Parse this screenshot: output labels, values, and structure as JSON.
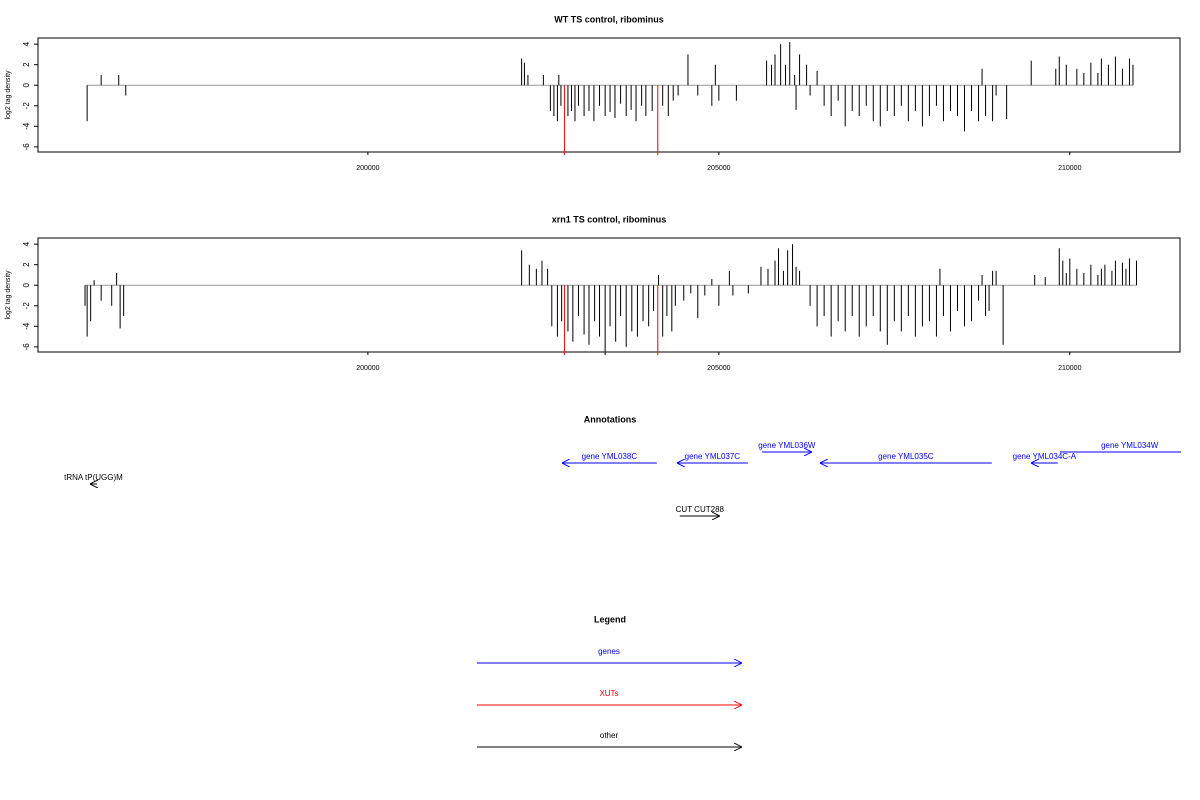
{
  "chart_data": [
    {
      "type": "bar",
      "title": "WT TS control, ribominus",
      "y_label": "log2 tag density",
      "xlim": [
        195300,
        211570
      ],
      "xticks": [
        200000,
        205000,
        210000
      ],
      "ylim": [
        -6.5,
        4.6
      ],
      "yticks": [
        -6,
        -4,
        -2,
        0,
        2,
        4
      ],
      "series": [
        {
          "color": "#000000",
          "x": [
            196000,
            196200,
            196450,
            196550,
            202190,
            202230,
            202280,
            202500,
            202600,
            202650,
            202700,
            202720,
            202750,
            202850,
            202900,
            202950,
            203000,
            203080,
            203150,
            203220,
            203300,
            203380,
            203450,
            203520,
            203600,
            203680,
            203750,
            203820,
            203900,
            203960,
            204050,
            204200,
            204280,
            204350,
            204420,
            204560,
            204700,
            204900,
            204950,
            205000,
            205250,
            205680,
            205750,
            205800,
            205880,
            205950,
            206010,
            206080,
            206100,
            206150,
            206250,
            206300,
            206400,
            206500,
            206600,
            206700,
            206800,
            206900,
            207000,
            207100,
            207200,
            207300,
            207400,
            207500,
            207600,
            207700,
            207800,
            207900,
            208000,
            208100,
            208200,
            208300,
            208400,
            208500,
            208600,
            208700,
            208750,
            208800,
            208900,
            208950,
            209100,
            209450,
            209800,
            209850,
            209950,
            210100,
            210200,
            210300,
            210400,
            210450,
            210550,
            210650,
            210750,
            210850,
            210900
          ],
          "values": [
            -3.5,
            1.0,
            1.0,
            -1.0,
            2.6,
            2.2,
            1.0,
            1.0,
            -2.5,
            -3.0,
            -3.5,
            1.0,
            -2.0,
            -3.0,
            -2.5,
            -3.5,
            -2.0,
            -3.0,
            -2.5,
            -3.5,
            -2.0,
            -3.0,
            -2.6,
            -3.2,
            -1.8,
            -3.0,
            -2.4,
            -3.5,
            -2.0,
            -3.0,
            -2.5,
            -2.0,
            -3.0,
            -1.5,
            -1.0,
            3.0,
            -1.0,
            -2.0,
            2.0,
            -1.5,
            -1.5,
            2.4,
            2.0,
            3.0,
            4.0,
            2.0,
            4.2,
            1.0,
            -2.4,
            3.0,
            2.0,
            -1.0,
            1.4,
            -2.0,
            -3.0,
            -1.5,
            -4.0,
            -2.5,
            -3.0,
            -2.0,
            -3.5,
            -4.0,
            -2.5,
            -3.0,
            -2.0,
            -3.5,
            -2.5,
            -4.0,
            -3.0,
            -2.0,
            -3.5,
            -2.5,
            -3.0,
            -4.5,
            -2.5,
            -3.5,
            1.6,
            -3.0,
            -3.5,
            -1.0,
            -3.3,
            2.4,
            1.6,
            2.8,
            2.0,
            1.6,
            1.2,
            2.2,
            1.2,
            2.6,
            2.0,
            2.8,
            1.6,
            2.6,
            2.0
          ]
        },
        {
          "color": "#ff0000",
          "x": [
            202800,
            204130
          ],
          "values": [
            -6.8,
            -6.8
          ]
        }
      ]
    },
    {
      "type": "bar",
      "title": "xrn1 TS control, ribominus",
      "y_label": "log2 tag density",
      "xlim": [
        195300,
        211570
      ],
      "xticks": [
        200000,
        205000,
        210000
      ],
      "ylim": [
        -6.5,
        4.6
      ],
      "yticks": [
        -6,
        -4,
        -2,
        0,
        2,
        4
      ],
      "series": [
        {
          "color": "#000000",
          "x": [
            195970,
            196000,
            196050,
            196100,
            196200,
            196350,
            196420,
            196470,
            196520,
            202190,
            202300,
            202400,
            202480,
            202560,
            202620,
            202700,
            202760,
            202850,
            202920,
            203000,
            203080,
            203150,
            203230,
            203300,
            203380,
            203450,
            203530,
            203600,
            203680,
            203760,
            203840,
            203920,
            204000,
            204070,
            204140,
            204200,
            204260,
            204330,
            204380,
            204500,
            204600,
            204700,
            204800,
            204900,
            205000,
            205150,
            205200,
            205420,
            205600,
            205700,
            205800,
            205850,
            205920,
            205980,
            206050,
            206100,
            206150,
            206300,
            206400,
            206500,
            206600,
            206700,
            206800,
            206900,
            207000,
            207100,
            207200,
            207300,
            207400,
            207500,
            207600,
            207700,
            207800,
            207900,
            208000,
            208100,
            208150,
            208200,
            208300,
            208400,
            208500,
            208600,
            208700,
            208750,
            208800,
            208850,
            208900,
            208950,
            209050,
            209500,
            209650,
            209850,
            209900,
            209950,
            210000,
            210100,
            210200,
            210300,
            210400,
            210450,
            210500,
            210600,
            210650,
            210750,
            210800,
            210850,
            210950
          ],
          "values": [
            -2.0,
            -5.0,
            -3.5,
            0.5,
            -1.5,
            -2.0,
            1.2,
            -4.2,
            -3.0,
            3.4,
            2.0,
            1.6,
            2.4,
            1.6,
            -4.0,
            -5.0,
            -3.5,
            -4.5,
            -5.5,
            -3.0,
            -4.8,
            -5.8,
            -3.5,
            -5.0,
            -6.8,
            -4.0,
            -5.5,
            -3.0,
            -6.0,
            -4.5,
            -5.0,
            -3.5,
            -4.0,
            -2.5,
            1.0,
            -5.0,
            -3.0,
            -4.5,
            -2.0,
            -1.5,
            -0.8,
            -3.2,
            -1.0,
            0.6,
            -2.0,
            1.4,
            -1.0,
            -0.8,
            1.8,
            1.6,
            2.4,
            3.6,
            1.4,
            3.4,
            4.0,
            1.8,
            1.4,
            -2.0,
            -4.0,
            -3.0,
            -5.0,
            -3.5,
            -4.5,
            -3.0,
            -5.0,
            -4.0,
            -3.0,
            -4.5,
            -5.8,
            -3.5,
            -4.5,
            -3.0,
            -5.0,
            -4.0,
            -3.5,
            -5.0,
            1.6,
            -3.0,
            -4.5,
            -2.5,
            -4.0,
            -3.5,
            -1.5,
            1.0,
            -3.0,
            -2.5,
            1.4,
            1.4,
            -5.8,
            1.0,
            0.8,
            3.6,
            2.4,
            1.2,
            2.6,
            1.6,
            1.2,
            2.0,
            1.0,
            1.6,
            2.0,
            1.4,
            2.4,
            2.2,
            1.6,
            2.6,
            2.4
          ]
        },
        {
          "color": "#ff0000",
          "x": [
            202800,
            204130
          ],
          "values": [
            -6.8,
            -6.8
          ]
        }
      ]
    }
  ],
  "annotations": {
    "title": "Annotations",
    "features": [
      {
        "label": "gene YML038C",
        "start": 202764,
        "end": 204117,
        "strand": "-",
        "color": "#0000ff"
      },
      {
        "label": "gene YML037C",
        "start": 204402,
        "end": 205413,
        "strand": "-",
        "color": "#0000ff"
      },
      {
        "label": "gene YML036W",
        "start": 205613,
        "end": 206325,
        "strand": "+",
        "color": "#0000ff"
      },
      {
        "label": "gene YML035C",
        "start": 206439,
        "end": 208889,
        "strand": "-",
        "color": "#0000ff"
      },
      {
        "label": "gene YML034C-A",
        "start": 209445,
        "end": 209830,
        "strand": "-",
        "color": "#0000ff"
      },
      {
        "label": "gene YML034W",
        "start": 209857,
        "end": 211850,
        "strand": "+",
        "color": "#0000ff"
      },
      {
        "label": "tRNA tP(UGG)M",
        "start": 196040,
        "end": 196140,
        "strand": "-",
        "color": "#000000"
      },
      {
        "label": "CUT CUT288",
        "start": 204444,
        "end": 205014,
        "strand": "+",
        "color": "#000000"
      }
    ]
  },
  "legend": {
    "title": "Legend",
    "items": [
      {
        "label": "genes",
        "color": "#0000ff"
      },
      {
        "label": "XUTs",
        "color": "#ff0000"
      },
      {
        "label": "other",
        "color": "#000000"
      }
    ]
  }
}
